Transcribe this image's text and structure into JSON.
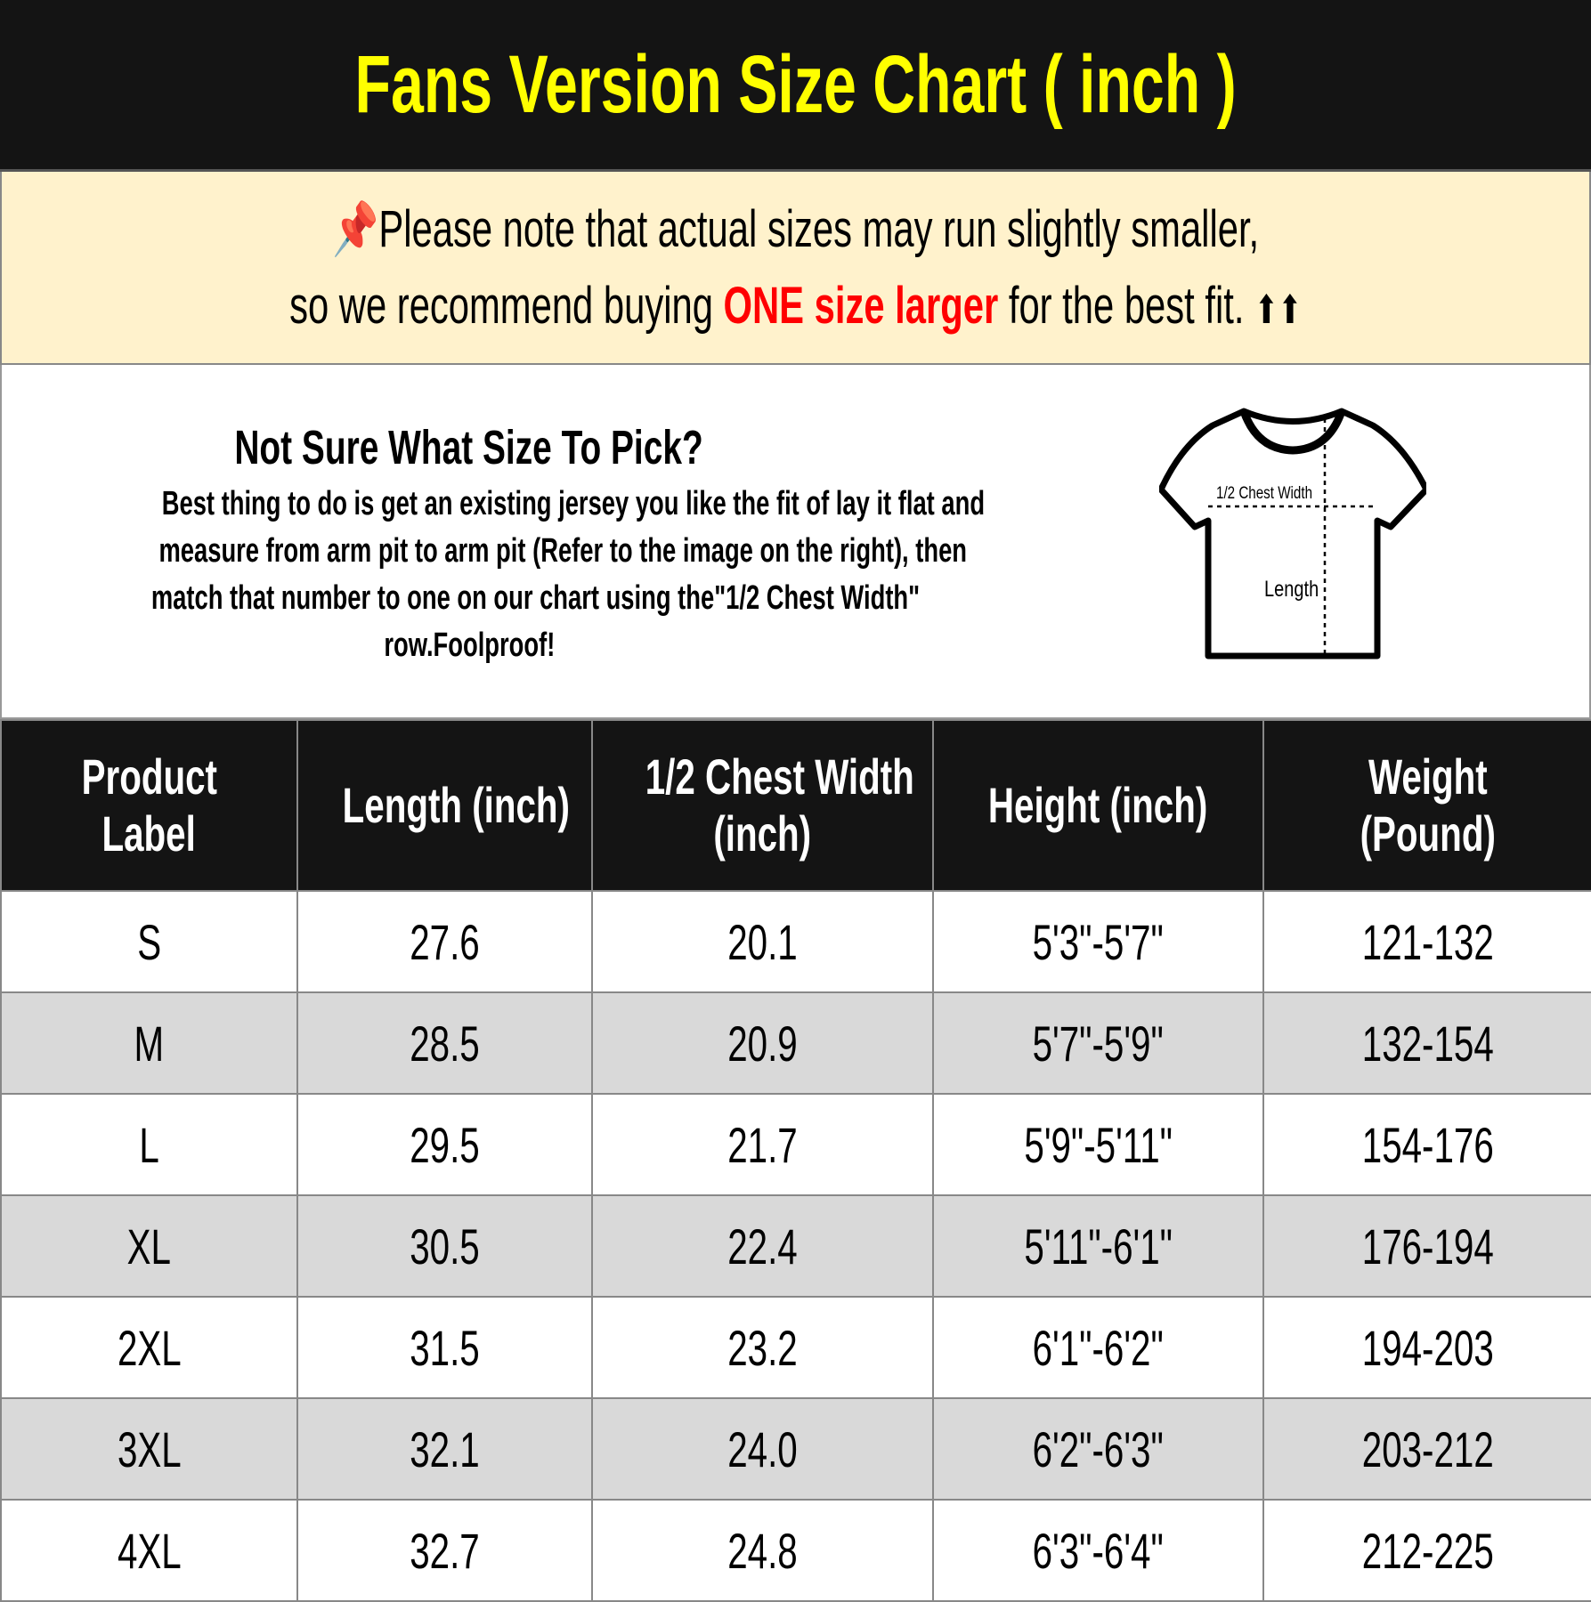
{
  "title": "Fans Version Size Chart ( inch )",
  "note": {
    "icon": "pushpin-icon",
    "line1": "Please note that actual sizes may run slightly smaller,",
    "line2_pre": "so we recommend buying ",
    "line2_highlight": "ONE size larger",
    "line2_post": " for the best fit.",
    "arrows": "⬆⬆",
    "highlight_color": "#ff0000"
  },
  "info": {
    "heading": "Not Sure What Size To Pick?",
    "body": [
      "Best thing to do is get an existing jersey you like the fit of lay it flat and",
      "measure from arm pit to arm pit (Refer to the image on the right), then",
      "match that number to one on our chart using the\"1/2 Chest Width\"",
      "row.Foolproof!"
    ],
    "diagram": {
      "chest_label": "1/2 Chest Width",
      "length_label": "Length"
    }
  },
  "table": {
    "headers": [
      [
        "Product",
        "Label"
      ],
      [
        "Length (inch)"
      ],
      [
        "1/2 Chest Width",
        "(inch)"
      ],
      [
        "Height (inch)"
      ],
      [
        "Weight",
        "(Pound)"
      ]
    ],
    "rows": [
      [
        "S",
        "27.6",
        "20.1",
        "5'3\"-5'7\"",
        "121-132"
      ],
      [
        "M",
        "28.5",
        "20.9",
        "5'7\"-5'9\"",
        "132-154"
      ],
      [
        "L",
        "29.5",
        "21.7",
        "5'9\"-5'11\"",
        "154-176"
      ],
      [
        "XL",
        "30.5",
        "22.4",
        "5'11\"-6'1\"",
        "176-194"
      ],
      [
        "2XL",
        "31.5",
        "23.2",
        "6'1\"-6'2\"",
        "194-203"
      ],
      [
        "3XL",
        "32.1",
        "24.0",
        "6'2\"-6'3\"",
        "203-212"
      ],
      [
        "4XL",
        "32.7",
        "24.8",
        "6'3\"-6'4\"",
        "212-225"
      ]
    ]
  }
}
